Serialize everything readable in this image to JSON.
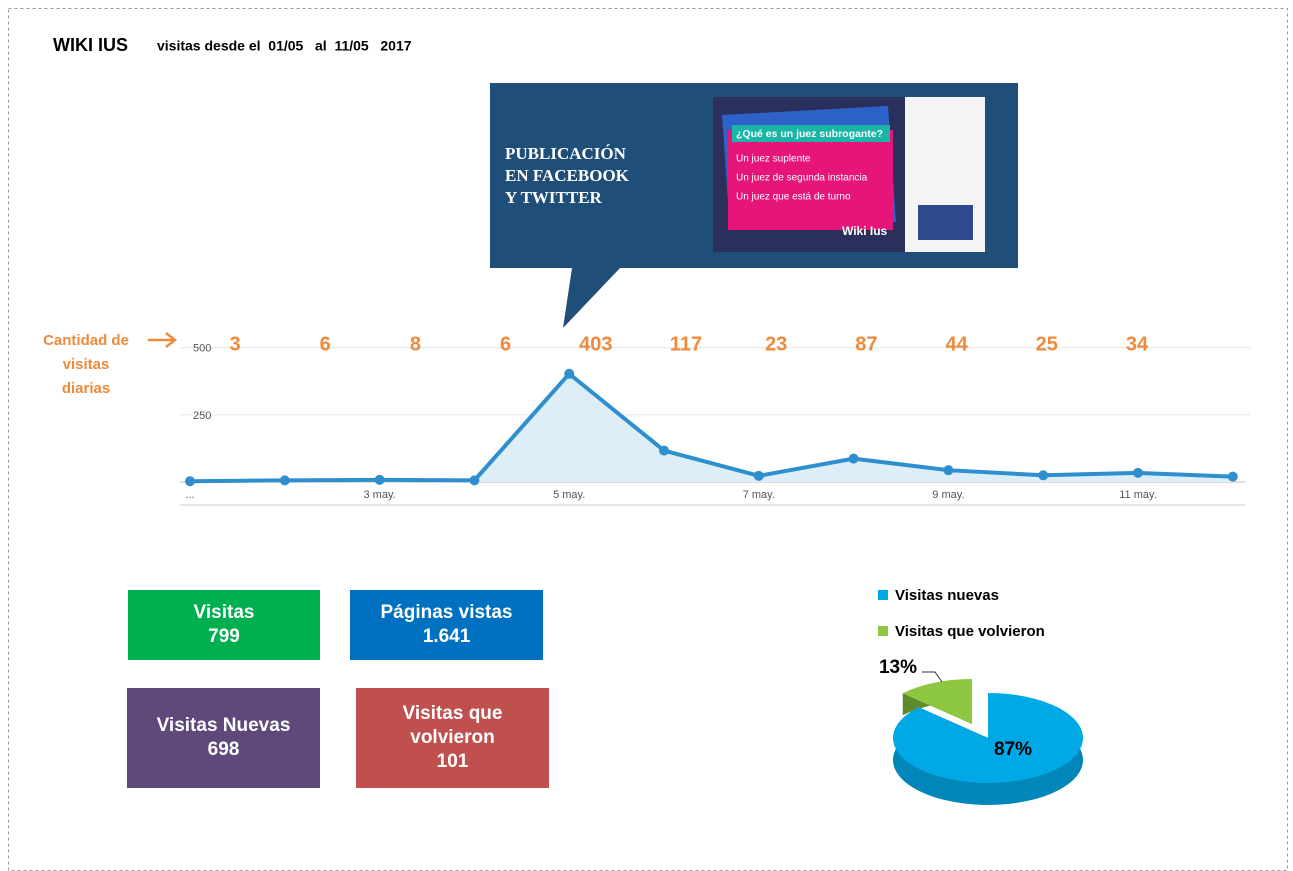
{
  "header": {
    "title": "WIKI IUS",
    "subtitle": "visitas desde el  01/05   al  11/05   2017"
  },
  "callout": {
    "lines": [
      "PUBLICACIÓN",
      "EN FACEBOOK",
      "Y TWITTER"
    ],
    "post": {
      "question": "¿Qué es un juez subrogante?",
      "options": [
        "Un juez suplente",
        "Un juez de segunda instancia",
        "Un juez que está de turno"
      ],
      "brand": "Wiki Ius"
    }
  },
  "chart_data": [
    {
      "type": "line",
      "annotation": [
        "Cantidad de",
        "visitas",
        "diarias"
      ],
      "x": [
        "...",
        null,
        "3 may.",
        null,
        "5 may.",
        null,
        "7 may.",
        null,
        "9 may.",
        null,
        "11 may.",
        null
      ],
      "values": [
        3,
        6,
        8,
        6,
        403,
        117,
        23,
        87,
        44,
        25,
        34,
        20
      ],
      "value_labels": [
        "3",
        "6",
        "8",
        "6",
        "403",
        "117",
        "23",
        "87",
        "44",
        "25",
        "34",
        null
      ],
      "color": "#2f8fce",
      "label_color": "#ee8a3c",
      "ylim": [
        0,
        540
      ],
      "yticks": [
        250,
        500
      ],
      "grid": true
    },
    {
      "type": "pie",
      "series": [
        {
          "name": "Visitas nuevas",
          "color": "#00a9e6",
          "values": [
            87
          ],
          "value_labels": [
            "87%"
          ]
        },
        {
          "name": "Visitas que volvieron",
          "color": "#8dc63f",
          "values": [
            13
          ],
          "value_labels": [
            "13%"
          ]
        }
      ]
    }
  ],
  "stats": [
    {
      "label_lines": [
        "Visitas"
      ],
      "value": "799",
      "color": "#00b050"
    },
    {
      "label_lines": [
        "Páginas vistas"
      ],
      "value": "1.641",
      "color": "#0070c0"
    },
    {
      "label_lines": [
        "Visitas Nuevas"
      ],
      "value": "698",
      "color": "#5f497a"
    },
    {
      "label_lines": [
        "Visitas que",
        "volvieron"
      ],
      "value": "101",
      "color": "#c0504d"
    }
  ]
}
